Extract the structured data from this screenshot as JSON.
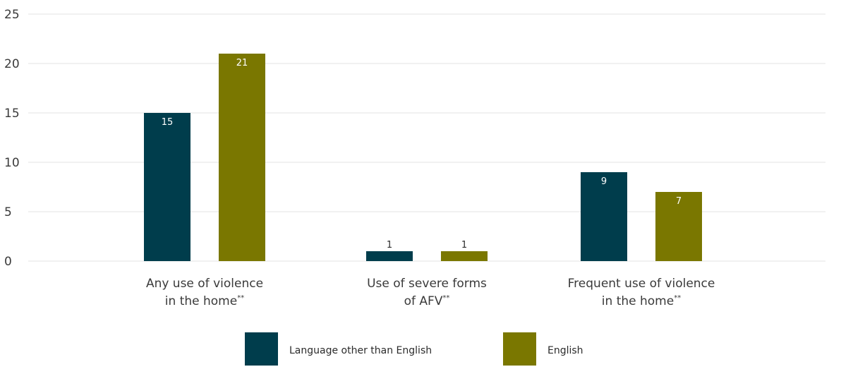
{
  "chart_data": {
    "type": "bar",
    "title": "",
    "xlabel": "",
    "ylabel": "",
    "ylim": [
      0,
      25
    ],
    "yticks": [
      0,
      5,
      10,
      15,
      20,
      25
    ],
    "grid": true,
    "legend_position": "bottom",
    "categories": [
      {
        "lines": [
          "Any use of violence",
          "in the home"
        ],
        "marker": "**"
      },
      {
        "lines": [
          "Use of severe forms",
          "of AFV"
        ],
        "marker": "**"
      },
      {
        "lines": [
          "Frequent use of violence",
          "in the home"
        ],
        "marker": "**"
      }
    ],
    "series": [
      {
        "name": "Language other than English",
        "color": "#003d4c",
        "values": [
          15,
          1,
          9
        ]
      },
      {
        "name": "English",
        "color": "#7a7700",
        "values": [
          21,
          1,
          7
        ]
      }
    ]
  }
}
